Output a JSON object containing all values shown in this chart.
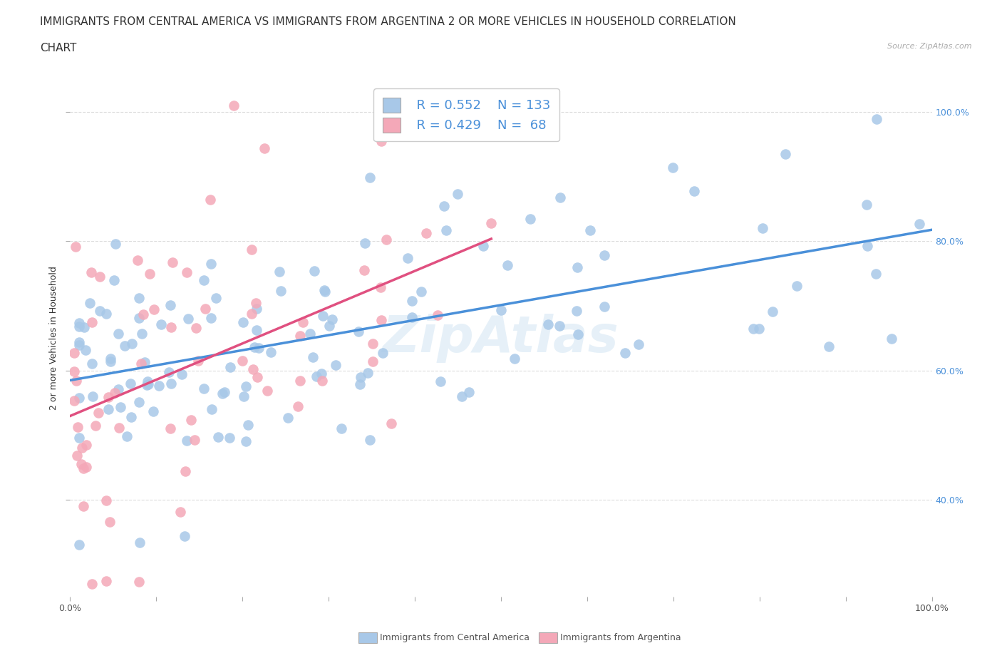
{
  "title_line1": "IMMIGRANTS FROM CENTRAL AMERICA VS IMMIGRANTS FROM ARGENTINA 2 OR MORE VEHICLES IN HOUSEHOLD CORRELATION",
  "title_line2": "CHART",
  "source_text": "Source: ZipAtlas.com",
  "ylabel": "2 or more Vehicles in Household",
  "xmin": 0.0,
  "xmax": 1.0,
  "ymin": 0.25,
  "ymax": 1.05,
  "y_tick_labels": [
    "40.0%",
    "60.0%",
    "80.0%",
    "100.0%"
  ],
  "y_tick_positions": [
    0.4,
    0.6,
    0.8,
    1.0
  ],
  "legend_label1": "Immigrants from Central America",
  "legend_label2": "Immigrants from Argentina",
  "R1": 0.552,
  "N1": 133,
  "R2": 0.429,
  "N2": 68,
  "color1": "#a8c8e8",
  "color2": "#f4a8b8",
  "trendline1_color": "#4a90d9",
  "trendline2_color": "#e05080",
  "background_color": "#ffffff",
  "grid_color": "#cccccc",
  "watermark_text": "ZipAtlas",
  "title_fontsize": 11,
  "axis_label_fontsize": 9,
  "tick_fontsize": 9,
  "legend_fontsize": 13
}
